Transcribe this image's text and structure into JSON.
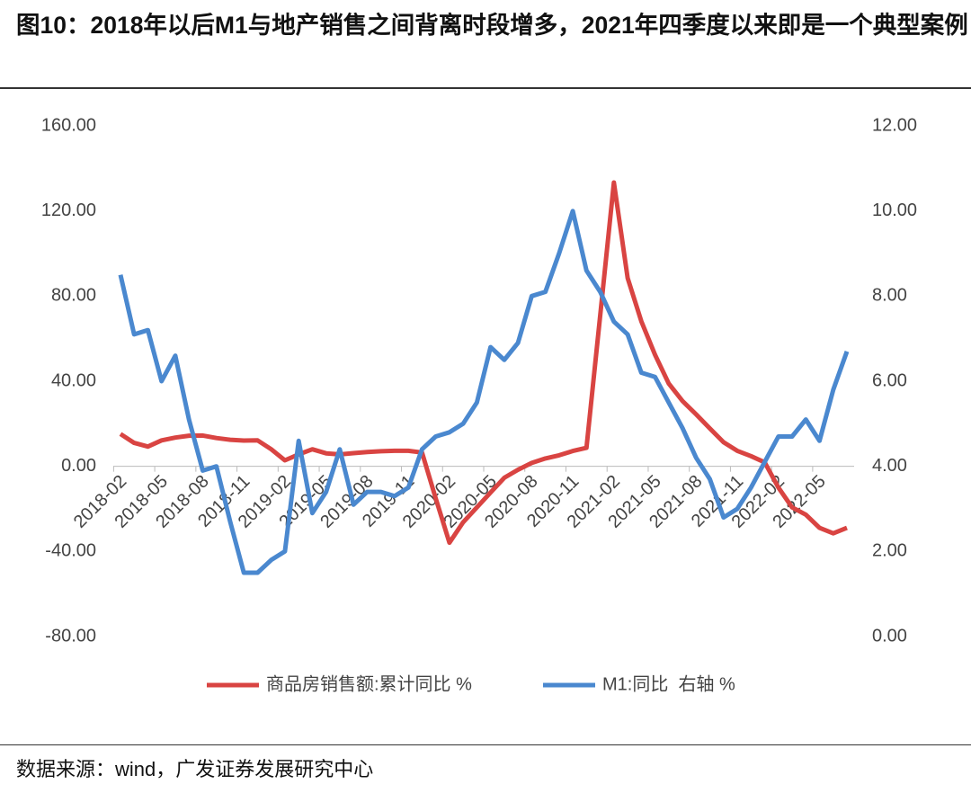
{
  "chart_data": {
    "type": "line",
    "title": "图10：2018年以后M1与地产销售之间背离时段增多，2021年四季度以来即是一个典型案例",
    "source": "数据来源：wind，广发证券发展研究中心",
    "categories": [
      "2018-02",
      null,
      null,
      "2018-05",
      null,
      null,
      "2018-08",
      null,
      null,
      "2018-11",
      null,
      null,
      "2019-02",
      null,
      null,
      "2019-05",
      null,
      null,
      "2019-08",
      null,
      null,
      "2019-11",
      null,
      null,
      "2020-02",
      null,
      null,
      "2020-05",
      null,
      null,
      "2020-08",
      null,
      null,
      "2020-11",
      null,
      null,
      "2021-02",
      null,
      null,
      "2021-05",
      null,
      null,
      "2021-08",
      null,
      null,
      "2021-11",
      null,
      null,
      "2022-02",
      null,
      null,
      "2022-05",
      null,
      null
    ],
    "series": [
      {
        "name": "商品房销售额:累计同比 %",
        "color": "#d94442",
        "values": [
          15.2,
          11,
          9.3,
          12.2,
          13.5,
          14.4,
          14.5,
          13.3,
          12.5,
          12.1,
          12.2,
          8,
          2.8,
          5.6,
          8,
          6.1,
          5.6,
          6.2,
          6.7,
          7.1,
          7.3,
          7.3,
          6.5,
          -15,
          -35.9,
          -26.3,
          -19.3,
          -12.3,
          -5.4,
          -1.6,
          1.6,
          3.7,
          5.2,
          7.2,
          8.7,
          71,
          133.4,
          88.5,
          68.2,
          52.4,
          38.9,
          30.7,
          24.4,
          17.8,
          11.3,
          7.3,
          4.8,
          1.9,
          -10,
          -19.3,
          -22.7,
          -28.9,
          -31.5,
          -28.9
        ]
      },
      {
        "name": "M1:同比  右轴 %",
        "color": "#4a88cf",
        "axis": "y2",
        "values": [
          8.5,
          7.1,
          7.2,
          6.0,
          6.6,
          5.1,
          3.9,
          4.0,
          2.7,
          1.5,
          1.5,
          1.8,
          2.0,
          4.6,
          2.9,
          3.4,
          4.4,
          3.1,
          3.4,
          3.4,
          3.3,
          3.5,
          4.4,
          4.7,
          4.8,
          5.0,
          5.5,
          6.8,
          6.5,
          6.9,
          8.0,
          8.1,
          9.0,
          10.0,
          8.6,
          8.1,
          7.4,
          7.1,
          6.2,
          6.1,
          5.5,
          4.9,
          4.2,
          3.7,
          2.8,
          3.0,
          3.5,
          4.1,
          4.7,
          4.7,
          5.1,
          4.6,
          5.8,
          6.7
        ]
      }
    ],
    "ylim": [
      -80,
      160
    ],
    "yticks": [
      {
        "value": -80,
        "label": "-80.00"
      },
      {
        "value": -40,
        "label": "-40.00"
      },
      {
        "value": 0,
        "label": "0.00"
      },
      {
        "value": 40,
        "label": "40.00"
      },
      {
        "value": 80,
        "label": "80.00"
      },
      {
        "value": 120,
        "label": "120.00"
      },
      {
        "value": 160,
        "label": "160.00"
      }
    ],
    "y2lim": [
      0,
      12
    ],
    "y2ticks": [
      {
        "value": 0,
        "label": "0.00"
      },
      {
        "value": 2,
        "label": "2.00"
      },
      {
        "value": 4,
        "label": "4.00"
      },
      {
        "value": 6,
        "label": "6.00"
      },
      {
        "value": 8,
        "label": "8.00"
      },
      {
        "value": 10,
        "label": "10.00"
      },
      {
        "value": 12,
        "label": "12.00"
      }
    ],
    "legend": "bottom"
  }
}
